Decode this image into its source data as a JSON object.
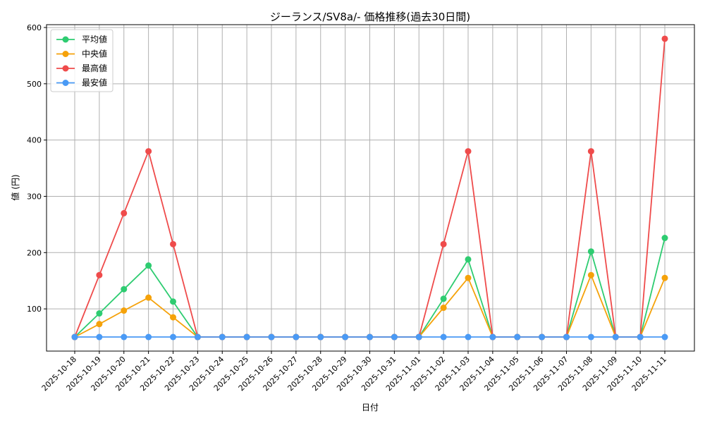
{
  "chart_data": {
    "type": "line",
    "title": "ジーランス/SV8a/- 価格推移(過去30日間)",
    "xlabel": "日付",
    "ylabel": "値 (円)",
    "ylim": [
      25,
      605
    ],
    "yticks": [
      100,
      200,
      300,
      400,
      500,
      600
    ],
    "grid": true,
    "legend_position": "top-left",
    "x": [
      "2025-10-18",
      "2025-10-19",
      "2025-10-20",
      "2025-10-21",
      "2025-10-22",
      "2025-10-23",
      "2025-10-24",
      "2025-10-25",
      "2025-10-26",
      "2025-10-27",
      "2025-10-28",
      "2025-10-29",
      "2025-10-30",
      "2025-10-31",
      "2025-11-01",
      "2025-11-02",
      "2025-11-03",
      "2025-11-04",
      "2025-11-05",
      "2025-11-06",
      "2025-11-07",
      "2025-11-08",
      "2025-11-09",
      "2025-11-10",
      "2025-11-11"
    ],
    "series": [
      {
        "name": "平均値",
        "color": "#2ecc71",
        "values": [
          50,
          92,
          135,
          177,
          113,
          50,
          50,
          50,
          50,
          50,
          50,
          50,
          50,
          50,
          50,
          118,
          188,
          50,
          50,
          50,
          50,
          202,
          50,
          50,
          226
        ]
      },
      {
        "name": "中央値",
        "color": "#f5a20a",
        "values": [
          50,
          73,
          97,
          120,
          85,
          50,
          50,
          50,
          50,
          50,
          50,
          50,
          50,
          50,
          50,
          102,
          155,
          50,
          50,
          50,
          50,
          160,
          50,
          50,
          155
        ]
      },
      {
        "name": "最高値",
        "color": "#ef4b4b",
        "values": [
          50,
          160,
          270,
          380,
          215,
          50,
          50,
          50,
          50,
          50,
          50,
          50,
          50,
          50,
          50,
          215,
          380,
          50,
          50,
          50,
          50,
          380,
          50,
          50,
          580
        ]
      },
      {
        "name": "最安値",
        "color": "#4a9af5",
        "values": [
          50,
          50,
          50,
          50,
          50,
          50,
          50,
          50,
          50,
          50,
          50,
          50,
          50,
          50,
          50,
          50,
          50,
          50,
          50,
          50,
          50,
          50,
          50,
          50,
          50
        ]
      }
    ]
  }
}
